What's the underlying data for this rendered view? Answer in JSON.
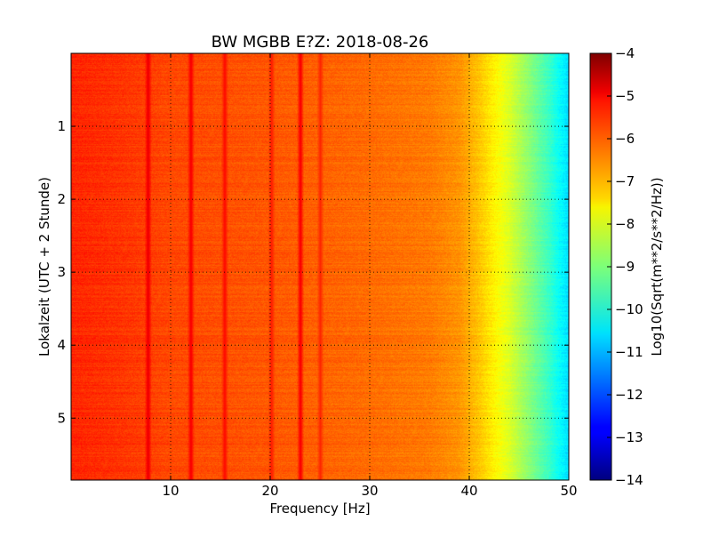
{
  "chart_data": {
    "type": "heatmap",
    "title": "BW MGBB E?Z: 2018-08-26",
    "xlabel": "Frequency [Hz]",
    "ylabel": "Lokalzeit (UTC + 2 Stunde)",
    "xlim": [
      0,
      50
    ],
    "ylim": [
      5.85,
      0
    ],
    "y_inverted": true,
    "grid": true,
    "grid_style": "dotted",
    "x_ticks": [
      10,
      20,
      30,
      40,
      50
    ],
    "x_tick_labels": [
      "10",
      "20",
      "30",
      "40",
      "50"
    ],
    "y_ticks": [
      1,
      2,
      3,
      4,
      5
    ],
    "y_tick_labels": [
      "1",
      "2",
      "3",
      "4",
      "5"
    ],
    "colorbar": {
      "label": "Log10(Sqrt(m**2/s**2/Hz))",
      "colormap": "jet",
      "vmin": -14,
      "vmax": -4,
      "ticks": [
        -4,
        -5,
        -6,
        -7,
        -8,
        -9,
        -10,
        -11,
        -12,
        -13,
        -14
      ],
      "tick_labels": [
        "−4",
        "−5",
        "−6",
        "−7",
        "−8",
        "−9",
        "−10",
        "−11",
        "−12",
        "−13",
        "−14"
      ]
    },
    "spectrum_profile": {
      "frequency_hz": [
        0,
        5,
        10,
        20,
        30,
        36,
        39,
        40,
        41,
        42,
        43,
        44,
        45,
        46,
        47,
        48,
        49,
        50
      ],
      "level": [
        -5.6,
        -5.75,
        -5.95,
        -6.1,
        -6.3,
        -6.45,
        -6.7,
        -6.95,
        -7.2,
        -7.5,
        -7.8,
        -8.1,
        -8.5,
        -8.9,
        -9.3,
        -9.7,
        -10.2,
        -10.6
      ]
    },
    "spectral_lines": [
      {
        "frequency_hz": 7.7,
        "level": -5.0
      },
      {
        "frequency_hz": 12.0,
        "level": -5.1
      },
      {
        "frequency_hz": 15.4,
        "level": -5.3
      },
      {
        "frequency_hz": 20.1,
        "level": -5.5
      },
      {
        "frequency_hz": 23.0,
        "level": -5.1
      },
      {
        "frequency_hz": 25.0,
        "level": -5.6
      }
    ]
  }
}
